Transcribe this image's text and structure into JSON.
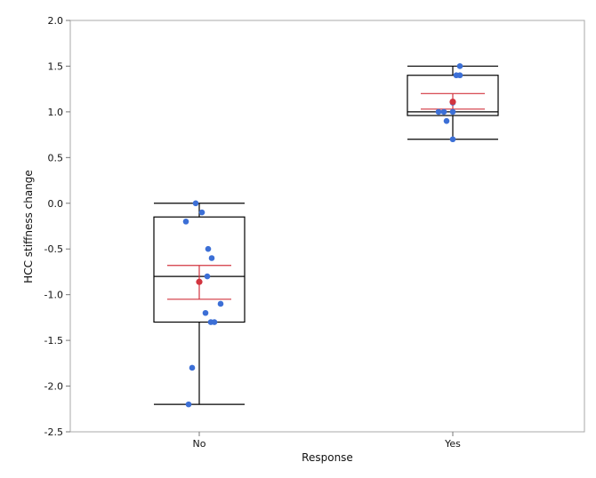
{
  "chart_data": {
    "type": "boxplot",
    "title": "",
    "xlabel": "Response",
    "ylabel": "HCC stiffness change",
    "ylim": [
      -2.5,
      2.0
    ],
    "yticks": [
      "2.0",
      "1.5",
      "1.0",
      "0.5",
      "0.0",
      "-0.5",
      "-1.0",
      "-1.5",
      "-2.0",
      "-2.5"
    ],
    "ytick_values": [
      2.0,
      1.5,
      1.0,
      0.5,
      0.0,
      -0.5,
      -1.0,
      -1.5,
      -2.0,
      -2.5
    ],
    "categories": [
      "No",
      "Yes"
    ],
    "grid": false,
    "legend": "none",
    "box_color": "#000000",
    "point_color": "#3c6fd6",
    "mean_color": "#d2343f",
    "groups": [
      {
        "category": "No",
        "whisker_low": -2.2,
        "q1": -1.3,
        "median": -0.8,
        "q3": -0.15,
        "whisker_high": 0.0,
        "mean": -0.86,
        "ci_low": -1.05,
        "ci_high": -0.68,
        "points": [
          {
            "y": 0.0,
            "jitter": -0.04
          },
          {
            "y": -0.1,
            "jitter": 0.03
          },
          {
            "y": -0.2,
            "jitter": -0.15
          },
          {
            "y": -0.5,
            "jitter": 0.1
          },
          {
            "y": -0.6,
            "jitter": 0.14
          },
          {
            "y": -0.8,
            "jitter": 0.09
          },
          {
            "y": -1.1,
            "jitter": 0.24
          },
          {
            "y": -1.2,
            "jitter": 0.07
          },
          {
            "y": -1.3,
            "jitter": 0.13
          },
          {
            "y": -1.3,
            "jitter": 0.17
          },
          {
            "y": -1.8,
            "jitter": -0.08
          },
          {
            "y": -2.2,
            "jitter": -0.12
          }
        ]
      },
      {
        "category": "Yes",
        "whisker_low": 0.7,
        "q1": 0.96,
        "median": 1.0,
        "q3": 1.4,
        "whisker_high": 1.5,
        "mean": 1.11,
        "ci_low": 1.03,
        "ci_high": 1.2,
        "points": [
          {
            "y": 1.5,
            "jitter": 0.08
          },
          {
            "y": 1.4,
            "jitter": 0.04
          },
          {
            "y": 1.4,
            "jitter": 0.08
          },
          {
            "y": 1.1,
            "jitter": 0.0
          },
          {
            "y": 1.0,
            "jitter": -0.16
          },
          {
            "y": 1.0,
            "jitter": -0.1
          },
          {
            "y": 1.0,
            "jitter": 0.0
          },
          {
            "y": 0.9,
            "jitter": -0.07
          },
          {
            "y": 0.7,
            "jitter": 0.0
          }
        ]
      }
    ]
  }
}
